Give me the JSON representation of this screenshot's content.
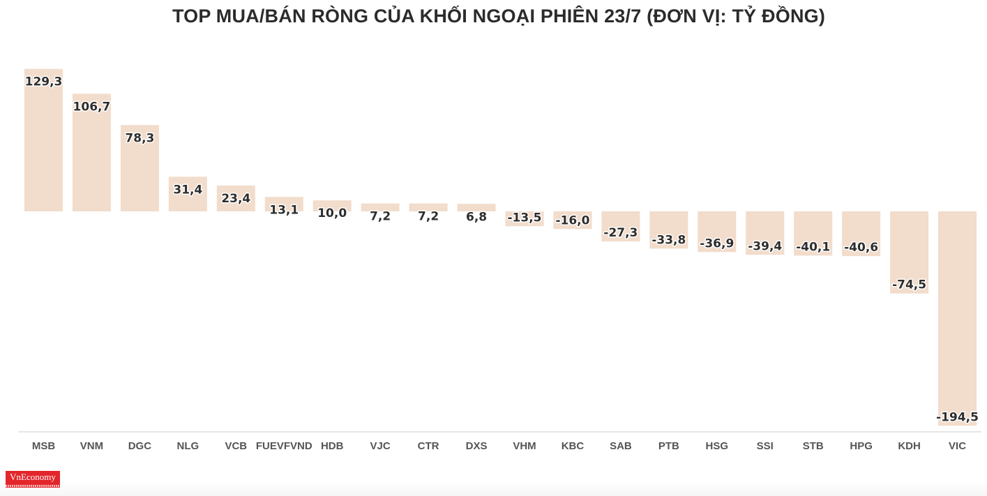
{
  "chart_data": {
    "type": "bar",
    "title": "TOP MUA/BÁN RÒNG CỦA KHỐI NGOẠI PHIÊN 23/7 (ĐƠN VỊ: TỶ ĐỒNG)",
    "categories": [
      "MSB",
      "VNM",
      "DGC",
      "NLG",
      "VCB",
      "FUEVFVND",
      "HDB",
      "VJC",
      "CTR",
      "DXS",
      "VHM",
      "KBC",
      "SAB",
      "PTB",
      "HSG",
      "SSI",
      "STB",
      "HPG",
      "KDH",
      "VIC"
    ],
    "values": [
      129.3,
      106.7,
      78.3,
      31.4,
      23.4,
      13.1,
      10.0,
      7.2,
      7.2,
      6.8,
      -13.5,
      -16.0,
      -27.3,
      -33.8,
      -36.9,
      -39.4,
      -40.1,
      -40.6,
      -74.5,
      -194.5
    ],
    "value_labels": [
      "129,3",
      "106,7",
      "78,3",
      "31,4",
      "23,4",
      "13,1",
      "10,0",
      "7,2",
      "7,2",
      "6,8",
      "-13,5",
      "-16,0",
      "-27,3",
      "-33,8",
      "-36,9",
      "-39,4",
      "-40,1",
      "-40,6",
      "-74,5",
      "-194,5"
    ],
    "bar_color": "#f2dccb",
    "grid": false
  },
  "brand": {
    "logo_text": "VnEconomy",
    "logo_color": "#e3262b"
  }
}
